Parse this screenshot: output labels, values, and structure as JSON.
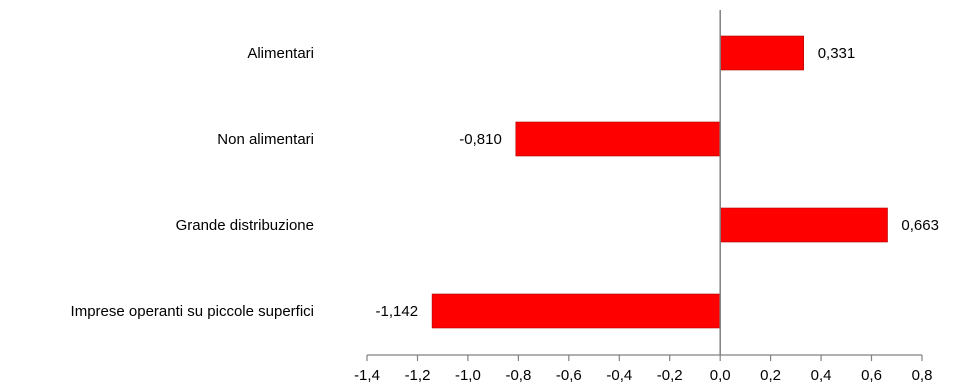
{
  "chart_data": {
    "type": "bar",
    "orientation": "horizontal",
    "title": "",
    "xlabel": "",
    "ylabel": "",
    "categories": [
      "Alimentari",
      "Non alimentari",
      "Grande distribuzione",
      "Imprese operanti su piccole superfici"
    ],
    "values": [
      0.331,
      -0.81,
      0.663,
      -1.142
    ],
    "value_labels": [
      "0,331",
      "-0,810",
      "0,663",
      "-1,142"
    ],
    "xlim": [
      -1.4,
      0.8
    ],
    "xticks": [
      -1.4,
      -1.2,
      -1.0,
      -0.8,
      -0.6,
      -0.4,
      -0.2,
      0.0,
      0.2,
      0.4,
      0.6,
      0.8
    ],
    "xtick_labels": [
      "-1,4",
      "-1,2",
      "-1,0",
      "-0,8",
      "-0,6",
      "-0,4",
      "-0,2",
      "0,0",
      "0,2",
      "0,4",
      "0,6",
      "0,8"
    ],
    "grid": false,
    "legend": "none",
    "colors": {
      "bar": "#ff0000",
      "bar_edge": "#b00000",
      "zero_line": "#808080",
      "axis": "#808080"
    }
  }
}
